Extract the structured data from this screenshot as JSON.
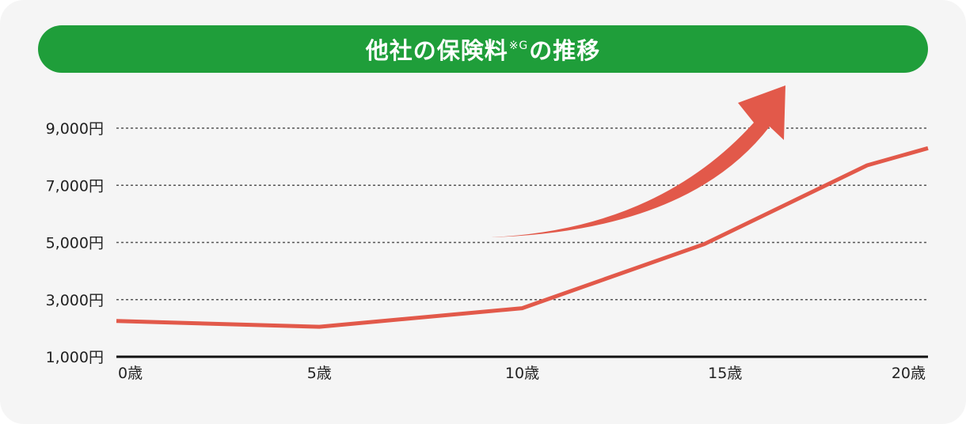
{
  "title": {
    "main": "他社の保険料",
    "superscript": "※G",
    "suffix": "の推移"
  },
  "colors": {
    "banner": "#1f9e3a",
    "line": "#e2594a",
    "arrow": "#e2594a",
    "grid": "#555555",
    "background": "#f5f5f5"
  },
  "chart_data": {
    "type": "line",
    "x_labels": [
      "0歳",
      "5歳",
      "10歳",
      "15歳",
      "20歳"
    ],
    "y_labels": [
      "9,000円",
      "7,000円",
      "5,000円",
      "3,000円",
      "1,000円"
    ],
    "ylim": [
      1000,
      9000
    ],
    "xlim": [
      0,
      20
    ],
    "grid": "horizontal dotted",
    "series": [
      {
        "points": [
          {
            "x": 0,
            "y": 2250
          },
          {
            "x": 5,
            "y": 2050
          },
          {
            "x": 10,
            "y": 2700
          },
          {
            "x": 14.5,
            "y": 4950
          },
          {
            "x": 18.5,
            "y": 7700
          },
          {
            "x": 20,
            "y": 8300
          }
        ]
      }
    ],
    "annotation": "upward trend arrow"
  }
}
